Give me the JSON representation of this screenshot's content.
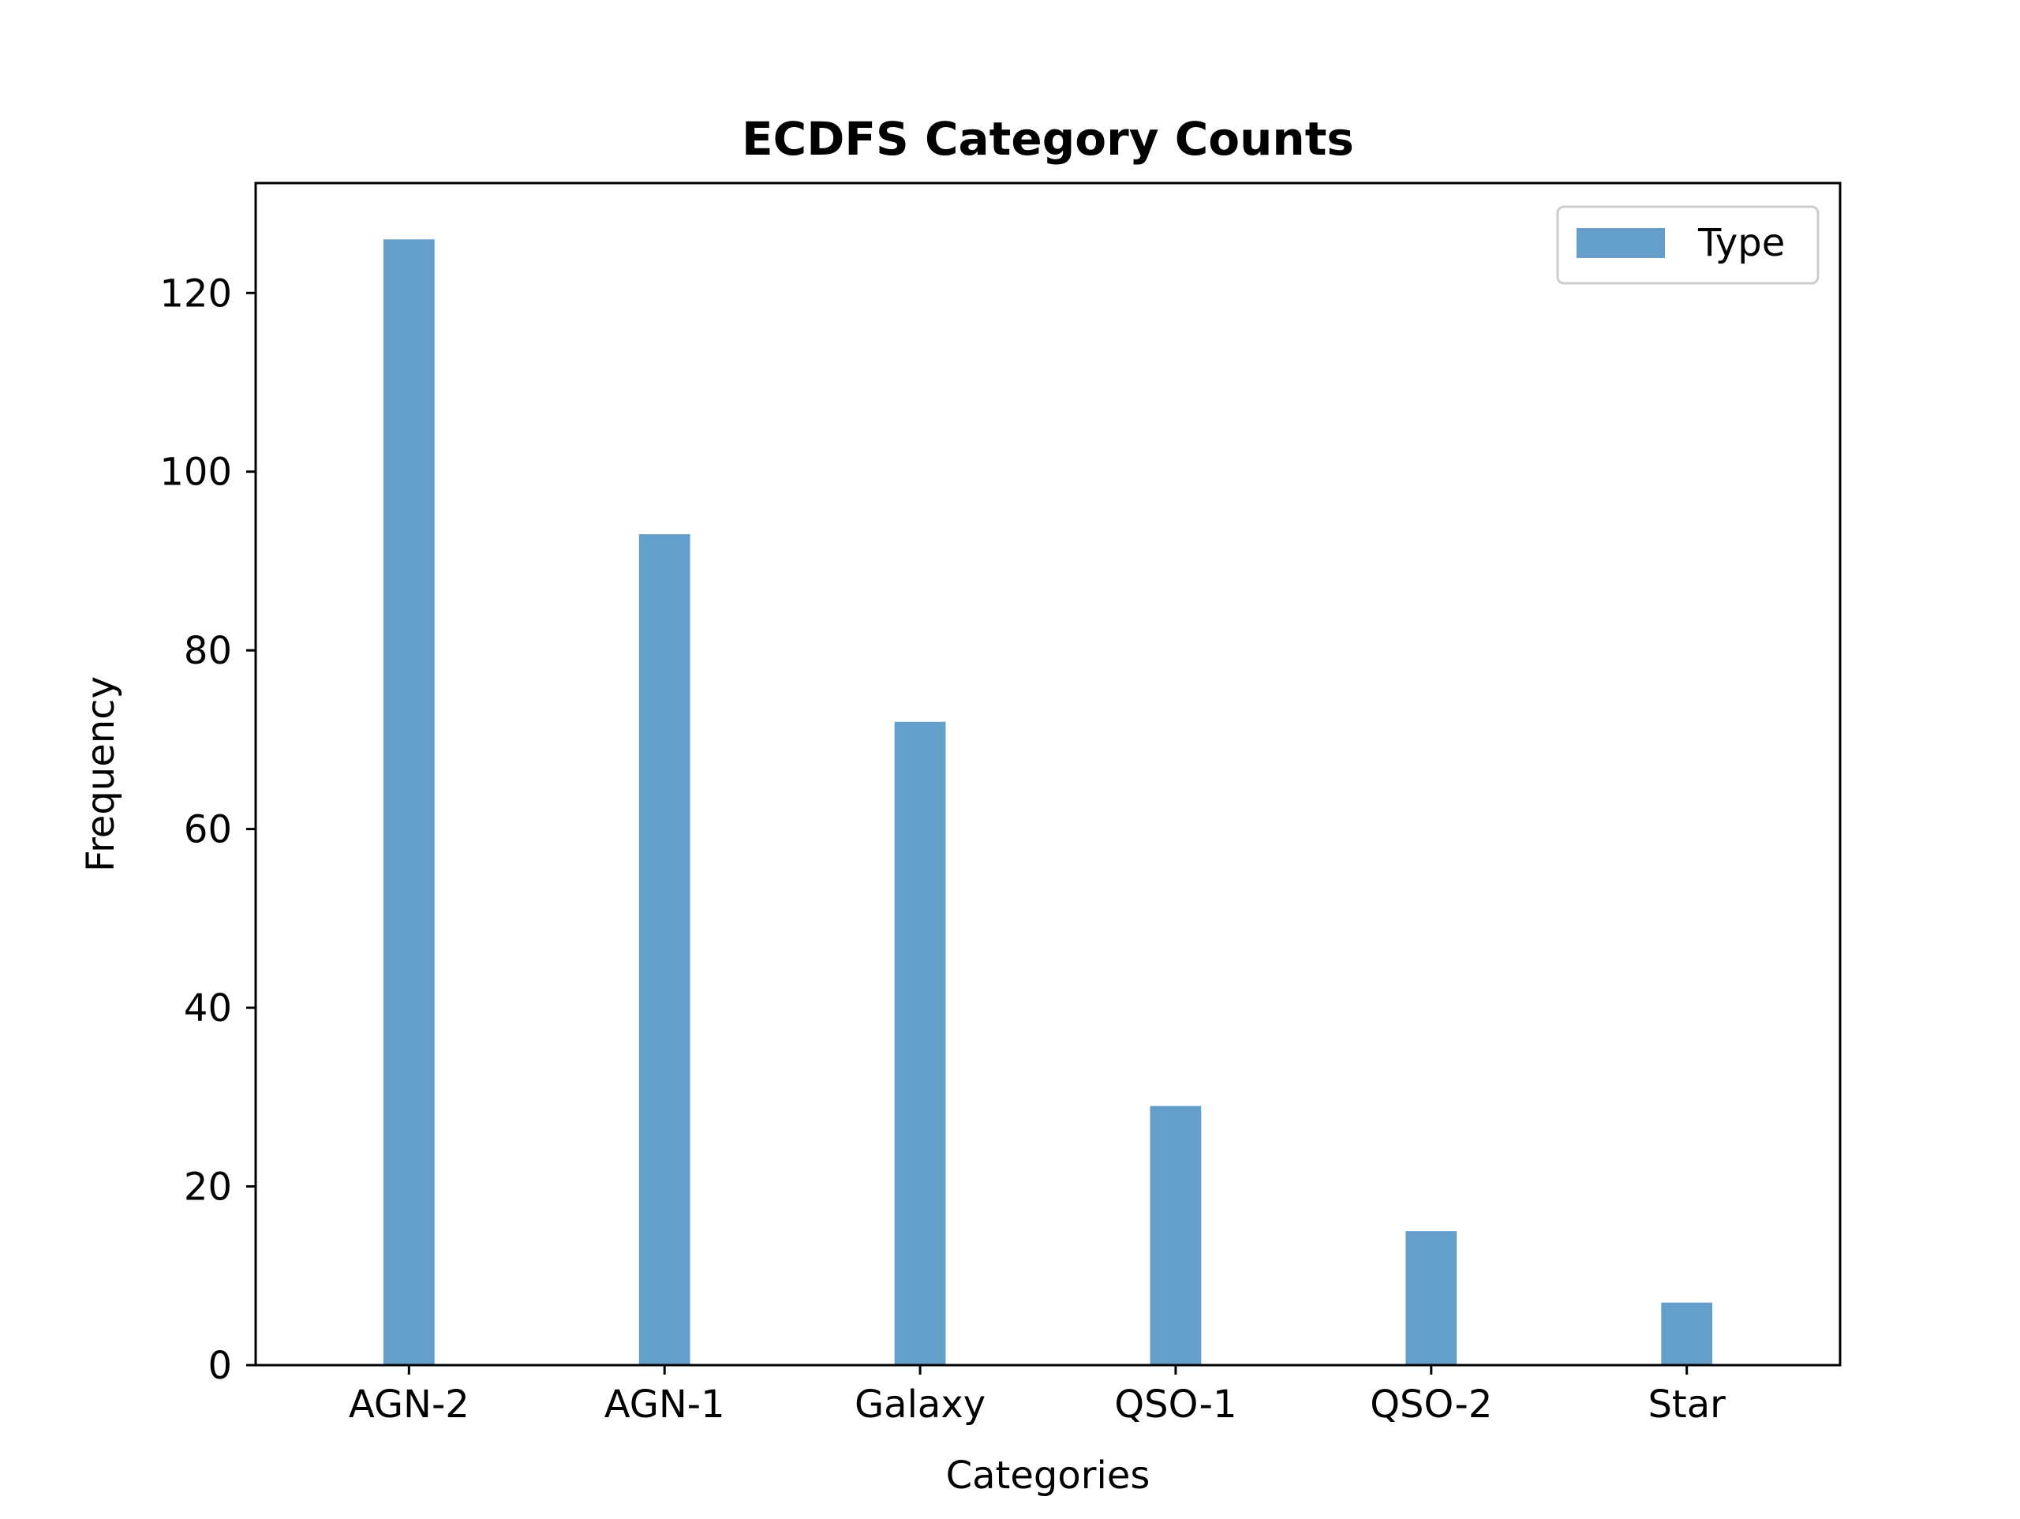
{
  "chart_data": {
    "type": "bar",
    "title": "ECDFS Category Counts",
    "xlabel": "Categories",
    "ylabel": "Frequency",
    "categories": [
      "AGN-2",
      "AGN-1",
      "Galaxy",
      "QSO-1",
      "QSO-2",
      "Star"
    ],
    "series": [
      {
        "name": "Type",
        "values": [
          126,
          93,
          72,
          29,
          15,
          7
        ],
        "color": "#639fca"
      }
    ],
    "yticks": [
      0,
      20,
      40,
      60,
      80,
      100,
      120
    ],
    "ylim": [
      0,
      132.3
    ],
    "legend_position": "top-right",
    "grid": false
  }
}
